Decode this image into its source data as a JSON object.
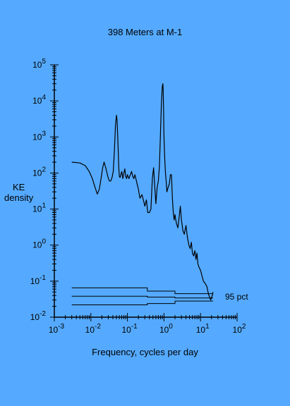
{
  "chart_data": {
    "type": "line",
    "title": "398 Meters at M-1",
    "xlabel": "Frequency, cycles per day",
    "ylabel_lines": [
      "KE",
      "density"
    ],
    "x_scale": "log",
    "y_scale": "log",
    "xlim": [
      0.001,
      100
    ],
    "ylim": [
      0.01,
      100000
    ],
    "x_ticks": [
      {
        "base": "10",
        "exp": "-3"
      },
      {
        "base": "10",
        "exp": "-2"
      },
      {
        "base": "10",
        "exp": "-1"
      },
      {
        "base": "10",
        "exp": "0"
      },
      {
        "base": "10",
        "exp": "1"
      },
      {
        "base": "10",
        "exp": "2"
      }
    ],
    "y_ticks": [
      {
        "base": "10",
        "exp": "5"
      },
      {
        "base": "10",
        "exp": "4"
      },
      {
        "base": "10",
        "exp": "3"
      },
      {
        "base": "10",
        "exp": "2"
      },
      {
        "base": "10",
        "exp": "1"
      },
      {
        "base": "10",
        "exp": "0"
      },
      {
        "base": "10",
        "exp": "-1"
      },
      {
        "base": "10",
        "exp": "-2"
      }
    ],
    "grid": false,
    "series": [
      {
        "x": [
          0.003,
          0.005,
          0.007,
          0.009,
          0.011,
          0.013,
          0.015,
          0.017,
          0.019,
          0.021,
          0.023,
          0.026,
          0.029,
          0.032,
          0.035,
          0.038,
          0.041,
          0.044,
          0.047,
          0.05,
          0.052,
          0.054,
          0.056,
          0.058,
          0.06,
          0.063,
          0.066,
          0.07,
          0.075,
          0.08,
          0.085,
          0.09,
          0.095,
          0.1,
          0.11,
          0.12,
          0.13,
          0.14,
          0.15,
          0.16,
          0.18,
          0.2,
          0.22,
          0.25,
          0.28,
          0.3,
          0.33,
          0.36,
          0.4,
          0.44,
          0.48,
          0.52,
          0.56,
          0.6,
          0.65,
          0.7,
          0.75,
          0.8,
          0.85,
          0.9,
          0.93,
          0.95,
          0.97,
          1.0,
          1.03,
          1.06,
          1.1,
          1.15,
          1.2,
          1.3,
          1.4,
          1.5,
          1.6,
          1.7,
          1.8,
          1.9,
          2.0,
          2.1,
          2.2,
          2.4,
          2.6,
          2.8,
          3.0,
          3.3,
          3.6,
          4.0,
          4.4,
          4.8,
          5.2,
          5.6,
          6.0,
          6.5,
          7.0,
          7.5,
          8.0,
          8.5,
          9.0,
          10.0,
          11.0,
          12.0,
          13.0,
          14.0,
          15.0,
          16.0,
          17.0,
          18.0,
          19.0,
          20.0,
          21.0,
          22.0
        ],
        "y": [
          200,
          190,
          160,
          110,
          70,
          40,
          26,
          35,
          70,
          140,
          200,
          130,
          80,
          60,
          60,
          75,
          110,
          400,
          2000,
          4000,
          3000,
          1200,
          400,
          150,
          80,
          75,
          90,
          110,
          70,
          100,
          130,
          80,
          70,
          90,
          70,
          90,
          110,
          80,
          70,
          90,
          55,
          35,
          20,
          25,
          16,
          12,
          18,
          8,
          8,
          10,
          70,
          140,
          40,
          14,
          40,
          60,
          150,
          1200,
          8000,
          25000,
          30000,
          22000,
          8000,
          1000,
          400,
          200,
          100,
          60,
          30,
          40,
          50,
          90,
          90,
          20,
          8,
          5,
          7,
          5,
          4,
          3,
          6,
          12,
          5,
          2.5,
          2.0,
          3.5,
          1.6,
          1.0,
          0.8,
          1.2,
          0.6,
          0.5,
          0.7,
          0.4,
          0.6,
          0.3,
          0.25,
          0.2,
          0.14,
          0.1,
          0.09,
          0.08,
          0.07,
          0.05,
          0.04,
          0.035,
          0.03,
          0.035,
          0.04,
          0.05
        ]
      }
    ],
    "confidence": {
      "label": "95 pct",
      "lines": [
        {
          "segments": [
            [
              0.003,
              0.35,
              0.065
            ],
            [
              0.35,
              2.0,
              0.053
            ],
            [
              2.0,
              22.0,
              0.045
            ]
          ]
        },
        {
          "segments": [
            [
              0.003,
              0.35,
              0.038
            ],
            [
              0.35,
              2.0,
              0.036
            ],
            [
              2.0,
              22.0,
              0.034
            ]
          ]
        },
        {
          "segments": [
            [
              0.003,
              0.35,
              0.022
            ],
            [
              0.35,
              2.0,
              0.024
            ],
            [
              2.0,
              22.0,
              0.028
            ]
          ]
        }
      ]
    },
    "colors": {
      "background": "#55aaff",
      "line": "#000000",
      "axis": "#000000"
    }
  }
}
